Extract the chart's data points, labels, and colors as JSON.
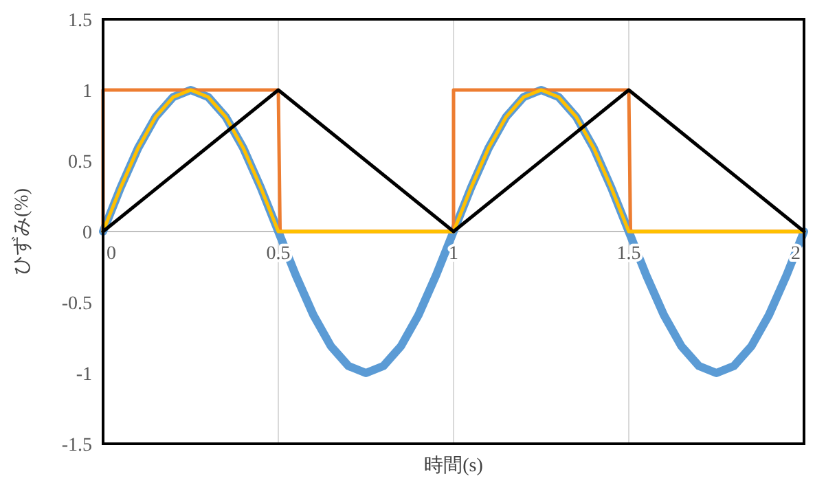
{
  "chart_data": {
    "type": "line",
    "xlabel": "時間(s)",
    "ylabel": "ひずみ(%)",
    "xlim": [
      0,
      2
    ],
    "ylim": [
      -1.5,
      1.5
    ],
    "xticks": [
      0,
      0.5,
      1,
      1.5,
      2
    ],
    "yticks": [
      -1.5,
      -1,
      -0.5,
      0,
      0.5,
      1,
      1.5
    ],
    "grid": "x",
    "series": [
      {
        "color": "#5b9bd5",
        "x": [
          0,
          0.05,
          0.1,
          0.15,
          0.2,
          0.25,
          0.3,
          0.35,
          0.4,
          0.45,
          0.5,
          0.55,
          0.6,
          0.65,
          0.7,
          0.75,
          0.8,
          0.85,
          0.9,
          0.95,
          1,
          1.05,
          1.1,
          1.15,
          1.2,
          1.25,
          1.3,
          1.35,
          1.4,
          1.45,
          1.5,
          1.55,
          1.6,
          1.65,
          1.7,
          1.75,
          1.8,
          1.85,
          1.9,
          1.95,
          2
        ],
        "values": [
          0,
          0.31,
          0.59,
          0.81,
          0.95,
          1,
          0.95,
          0.81,
          0.59,
          0.31,
          0,
          -0.31,
          -0.59,
          -0.81,
          -0.95,
          -1,
          -0.95,
          -0.81,
          -0.59,
          -0.31,
          0,
          0.31,
          0.59,
          0.81,
          0.95,
          1,
          0.95,
          0.81,
          0.59,
          0.31,
          0,
          -0.31,
          -0.59,
          -0.81,
          -0.95,
          -1,
          -0.95,
          -0.81,
          -0.59,
          -0.31,
          0
        ]
      },
      {
        "color": "#ed7d31",
        "x": [
          0,
          0,
          0.5,
          0.505,
          1,
          1,
          1.5,
          1.505,
          2
        ],
        "values": [
          0,
          1,
          1,
          0,
          0,
          1,
          1,
          0,
          0
        ]
      },
      {
        "color": "#ffc000",
        "x": [
          0,
          0.05,
          0.1,
          0.15,
          0.2,
          0.25,
          0.3,
          0.35,
          0.4,
          0.45,
          0.5,
          1,
          1.05,
          1.1,
          1.15,
          1.2,
          1.25,
          1.3,
          1.35,
          1.4,
          1.45,
          1.5,
          2
        ],
        "values": [
          0,
          0.31,
          0.59,
          0.81,
          0.95,
          1,
          0.95,
          0.81,
          0.59,
          0.31,
          0,
          0,
          0.31,
          0.59,
          0.81,
          0.95,
          1,
          0.95,
          0.81,
          0.59,
          0.31,
          0,
          0
        ]
      },
      {
        "color": "#000000",
        "x": [
          0,
          0.5,
          1,
          1.5,
          2
        ],
        "values": [
          0,
          1,
          0,
          1,
          0
        ]
      }
    ]
  }
}
